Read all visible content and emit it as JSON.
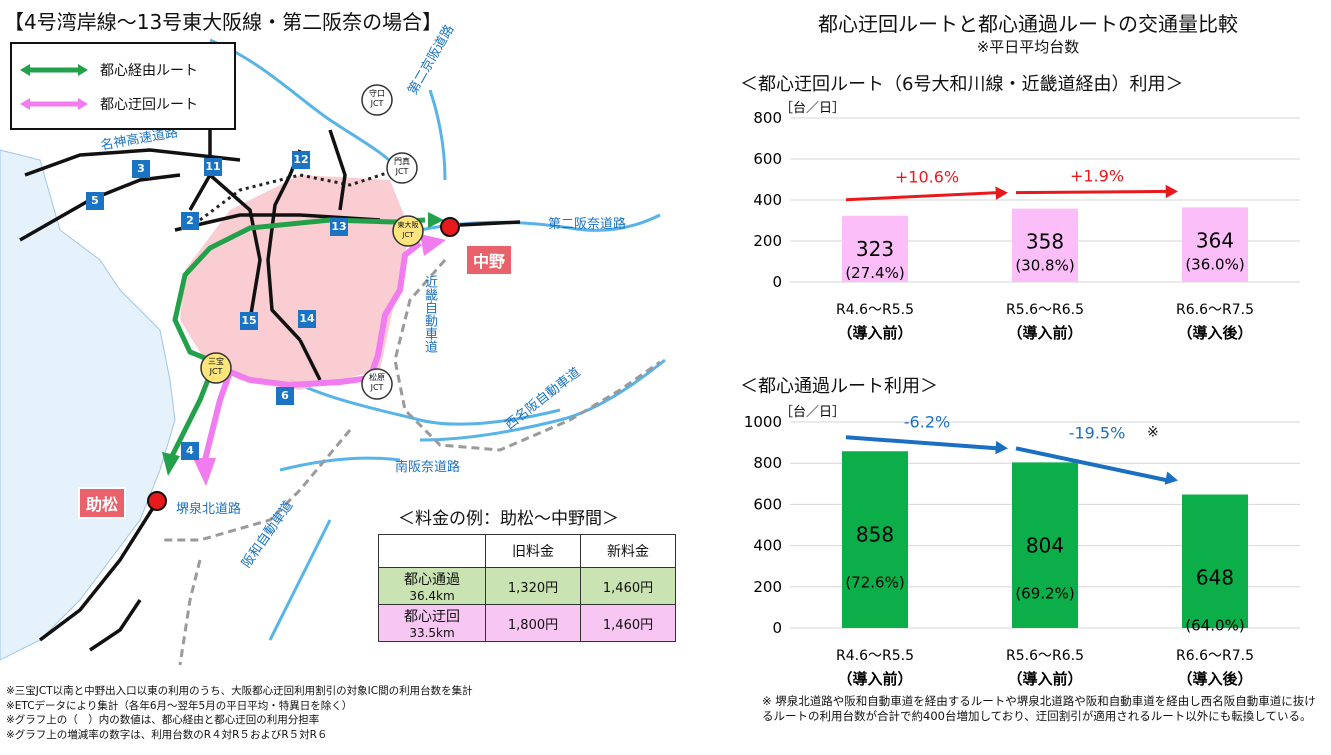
{
  "left": {
    "title": "【4号湾岸線～13号東大阪線・第二阪奈の場合】",
    "legend": [
      {
        "label": "都心経由ルート",
        "color": "#22a14a"
      },
      {
        "label": "都心迂回ルート",
        "color": "#f07cf0"
      }
    ],
    "map_labels": {
      "meishin": "名神高速道路",
      "daini_keihan": "第二京阪道路",
      "daini_hanna": "第二阪奈道路",
      "kinki": "近畿自動車道",
      "nishimeihan": "西名阪自動車道",
      "minami_hanna": "南阪奈道路",
      "sakai_semboku": "堺泉北道路",
      "hanwa": "阪和自動車道"
    },
    "route_numbers": [
      "3",
      "5",
      "11",
      "12",
      "2",
      "13",
      "15",
      "14",
      "6",
      "4"
    ],
    "jcts": [
      {
        "name": "守口\nJCT"
      },
      {
        "name": "門真\nJCT"
      },
      {
        "name": "東大阪\nJCT"
      },
      {
        "name": "三宝\nJCT"
      },
      {
        "name": "松原\nJCT"
      }
    ],
    "stations": {
      "start": "助松",
      "end": "中野"
    },
    "fare_caption": "＜料金の例：助松～中野間＞",
    "fare_table": {
      "headers": [
        "",
        "旧料金",
        "新料金"
      ],
      "rows": [
        {
          "route": "都心通過",
          "dist": "36.4km",
          "old": "1,320円",
          "new": "1,460円"
        },
        {
          "route": "都心迂回",
          "dist": "33.5km",
          "old": "1,800円",
          "new": "1,460円"
        }
      ]
    },
    "footnotes": [
      "※三宝JCT以南と中野出入口以東の利用のうち、大阪都心迂回利用割引の対象IC間の利用台数を集計",
      "※ETCデータにより集計（各年6月～翌年5月の平日平均・特異日を除く）",
      "※グラフ上の（　）内の数値は、都心経由と都心迂回の利用分担率",
      "※グラフ上の増減率の数字は、利用台数のR４対R５およびR５対R６"
    ]
  },
  "right": {
    "title": "都心迂回ルートと都心通過ルートの交通量比較",
    "subtitle": "※平日平均台数",
    "chart1_title": "＜都心迂回ルート（6号大和川線・近畿道経由）利用＞",
    "chart2_title": "＜都心通過ルート利用＞",
    "unit": "［台／日］",
    "categories": [
      {
        "line1": "R4.6～R5.5",
        "line2": "（導入前）"
      },
      {
        "line1": "R5.6～R6.5",
        "line2": "（導入前）"
      },
      {
        "line1": "R6.6～R7.5",
        "line2": "（導入後）"
      }
    ],
    "note": "※ 堺泉北道路や阪和自動車道を経由するルートや堺泉北道路や阪和自動車道を経由し西名阪自動車道に抜けるルートの利用台数が合計で約400台増加しており、迂回割引が適用されるルート以外にも転換している。"
  },
  "chart_data": [
    {
      "type": "bar",
      "title": "＜都心迂回ルート（6号大和川線・近畿道経由）利用＞",
      "ylabel": "［台／日］",
      "categories": [
        "R4.6～R5.5（導入前）",
        "R5.6～R6.5（導入前）",
        "R6.6～R7.5（導入後）"
      ],
      "values": [
        323,
        358,
        364
      ],
      "shares": [
        "(27.4%)",
        "(30.8%)",
        "(36.0%)"
      ],
      "changes": [
        "+10.6%",
        "+1.9%"
      ],
      "ylim": [
        0,
        800
      ],
      "yticks": [
        0,
        200,
        400,
        600,
        800
      ],
      "bar_color": "#fbbef8",
      "arrow_color": "#e8191c",
      "grid": true
    },
    {
      "type": "bar",
      "title": "＜都心通過ルート利用＞",
      "ylabel": "［台／日］",
      "categories": [
        "R4.6～R5.5（導入前）",
        "R5.6～R6.5（導入前）",
        "R6.6～R7.5（導入後）"
      ],
      "values": [
        858,
        804,
        648
      ],
      "shares": [
        "(72.6%)",
        "(69.2%)",
        "(64.0%)"
      ],
      "changes": [
        "-6.2%",
        "-19.5%"
      ],
      "change_mark": "※",
      "ylim": [
        0,
        1000
      ],
      "yticks": [
        0,
        200,
        400,
        600,
        800,
        1000
      ],
      "bar_color": "#0bae48",
      "arrow_color": "#1b6fc2",
      "grid": true
    }
  ]
}
